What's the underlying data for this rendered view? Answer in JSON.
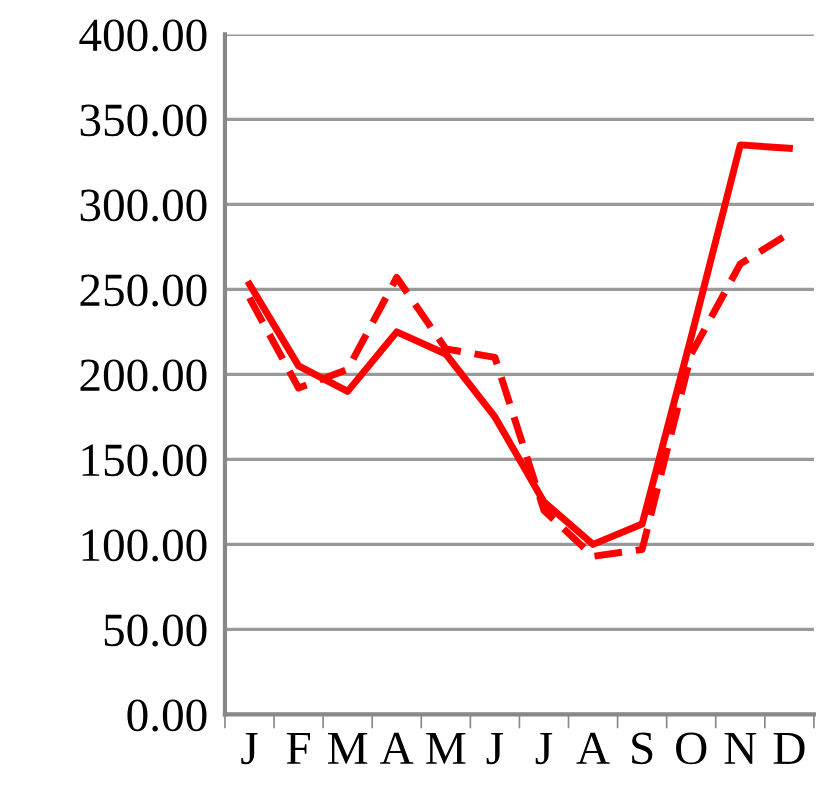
{
  "chart_data": {
    "type": "line",
    "categories": [
      "J",
      "F",
      "M",
      "A",
      "M",
      "J",
      "J",
      "A",
      "S",
      "O",
      "N",
      "D"
    ],
    "series": [
      {
        "color": "#ff0000",
        "line_style": "solid",
        "values": [
          253,
          205,
          190,
          225,
          212,
          175,
          125,
          100,
          112,
          222,
          335,
          333
        ]
      },
      {
        "color": "#ff0000",
        "line_style": "dashed",
        "values": [
          245,
          192,
          203,
          257,
          215,
          210,
          120,
          93,
          97,
          212,
          265,
          283
        ]
      }
    ],
    "ylim": [
      0,
      400
    ],
    "yticks": [
      {
        "value": 0,
        "label": "0.00"
      },
      {
        "value": 50,
        "label": "50.00"
      },
      {
        "value": 100,
        "label": "100.00"
      },
      {
        "value": 150,
        "label": "150.00"
      },
      {
        "value": 200,
        "label": "200.00"
      },
      {
        "value": 250,
        "label": "250.00"
      },
      {
        "value": 300,
        "label": "300.00"
      },
      {
        "value": 350,
        "label": "350.00"
      },
      {
        "value": 400,
        "label": "400.00"
      }
    ],
    "grid": "y",
    "legend": false,
    "marker": "none"
  }
}
